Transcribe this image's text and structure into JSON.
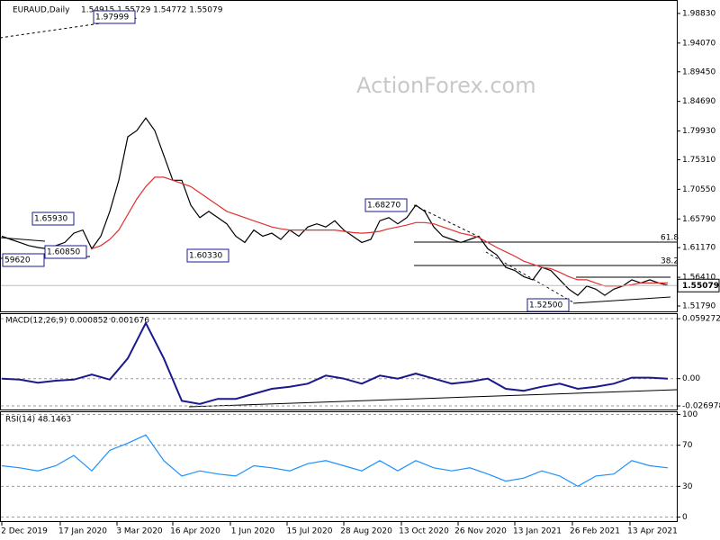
{
  "chart_data": [
    {
      "type": "line",
      "title": "EURAUD,Daily",
      "subtitle": "1.54915 1.55729 1.54772 1.55079",
      "watermark": "ActionForex.com",
      "series": [
        {
          "color": "#000000",
          "values": [
            1.63,
            1.625,
            1.62,
            1.615,
            1.612,
            1.61,
            1.615,
            1.62,
            1.635,
            1.64,
            1.61,
            1.63,
            1.67,
            1.72,
            1.79,
            1.8,
            1.82,
            1.8,
            1.76,
            1.72,
            1.72,
            1.68,
            1.66,
            1.67,
            1.66,
            1.65,
            1.63,
            1.62,
            1.64,
            1.63,
            1.635,
            1.625,
            1.64,
            1.63,
            1.645,
            1.65,
            1.645,
            1.655,
            1.64,
            1.63,
            1.62,
            1.625,
            1.655,
            1.66,
            1.65,
            1.66,
            1.68,
            1.67,
            1.645,
            1.63,
            1.625,
            1.62,
            1.625,
            1.63,
            1.61,
            1.6,
            1.58,
            1.575,
            1.565,
            1.56,
            1.58,
            1.575,
            1.56,
            1.545,
            1.535,
            1.55,
            1.545,
            1.535,
            1.545,
            1.55,
            1.56,
            1.555,
            1.56,
            1.555,
            1.551
          ]
        },
        {
          "color": "#e03030",
          "values": [
            null,
            null,
            null,
            null,
            null,
            null,
            null,
            null,
            null,
            null,
            1.61,
            1.615,
            1.625,
            1.64,
            1.665,
            1.69,
            1.71,
            1.725,
            1.725,
            1.72,
            1.715,
            1.71,
            1.7,
            1.69,
            1.68,
            1.67,
            1.665,
            1.66,
            1.655,
            1.65,
            1.645,
            1.642,
            1.64,
            1.64,
            1.64,
            1.64,
            1.64,
            1.64,
            1.638,
            1.636,
            1.635,
            1.636,
            1.638,
            1.642,
            1.645,
            1.648,
            1.652,
            1.652,
            1.65,
            1.645,
            1.64,
            1.635,
            1.632,
            1.628,
            1.62,
            1.612,
            1.605,
            1.598,
            1.59,
            1.585,
            1.58,
            1.578,
            1.572,
            1.565,
            1.56,
            1.56,
            1.555,
            1.55,
            1.55,
            1.55,
            1.552,
            1.555,
            1.555,
            1.555,
            1.555
          ]
        }
      ],
      "ylim": [
        1.5092,
        2.0085
      ],
      "yticks": [
        {
          "value": 1.9883,
          "label": "1.98830"
        },
        {
          "value": 1.9407,
          "label": "1.94070"
        },
        {
          "value": 1.8945,
          "label": "1.89450"
        },
        {
          "value": 1.8469,
          "label": "1.84690"
        },
        {
          "value": 1.7993,
          "label": "1.79930"
        },
        {
          "value": 1.7531,
          "label": "1.75310"
        },
        {
          "value": 1.7055,
          "label": "1.70550"
        },
        {
          "value": 1.6579,
          "label": "1.65790"
        },
        {
          "value": 1.6117,
          "label": "1.61170"
        },
        {
          "value": 1.5641,
          "label": "1.56410"
        },
        {
          "value": 1.5179,
          "label": "1.51790"
        }
      ],
      "current_price": 1.55079,
      "annotations": [
        "1.97999",
        "1.65930",
        "1.60850",
        "59620",
        "1.60330",
        "1.68270",
        "1.52500",
        "61.8",
        "38.2"
      ]
    },
    {
      "type": "line",
      "title": "MACD(12,26,9) 0.000852 0.001676",
      "series": [
        {
          "color": "#1a1a8c",
          "values": [
            0.0,
            -0.001,
            -0.004,
            -0.002,
            -0.001,
            0.004,
            -0.001,
            0.02,
            0.055,
            0.02,
            -0.022,
            -0.025,
            -0.02,
            -0.02,
            -0.015,
            -0.01,
            -0.008,
            -0.005,
            0.003,
            0.0,
            -0.005,
            0.003,
            0.0,
            0.005,
            0.0,
            -0.005,
            -0.003,
            0.0,
            -0.01,
            -0.012,
            -0.008,
            -0.005,
            -0.01,
            -0.008,
            -0.005,
            0.001,
            0.001,
            0.0
          ]
        }
      ],
      "ylim": [
        -0.0305,
        0.0638
      ],
      "yticks": [
        0.059272,
        {
          "value": 0,
          "label": "0.00"
        },
        -0.026978
      ]
    },
    {
      "type": "line",
      "title": "RSI(14) 48.1463",
      "series": [
        {
          "color": "#1e90ff",
          "values": [
            50,
            48,
            45,
            50,
            60,
            45,
            65,
            72,
            80,
            55,
            40,
            45,
            42,
            40,
            50,
            48,
            45,
            52,
            55,
            50,
            45,
            55,
            45,
            55,
            48,
            45,
            48,
            42,
            35,
            38,
            45,
            40,
            30,
            40,
            42,
            55,
            50,
            48
          ]
        }
      ],
      "ylim": [
        -3.9,
        102.2
      ],
      "yticks": [
        100,
        70,
        30,
        0
      ],
      "xtick_labels": [
        "2 Dec 2019",
        "17 Jan 2020",
        "3 Mar 2020",
        "16 Apr 2020",
        "1 Jun 2020",
        "15 Jul 2020",
        "28 Aug 2020",
        "13 Oct 2020",
        "26 Nov 2020",
        "13 Jan 2021",
        "26 Feb 2021",
        "13 Apr 2021"
      ]
    }
  ]
}
